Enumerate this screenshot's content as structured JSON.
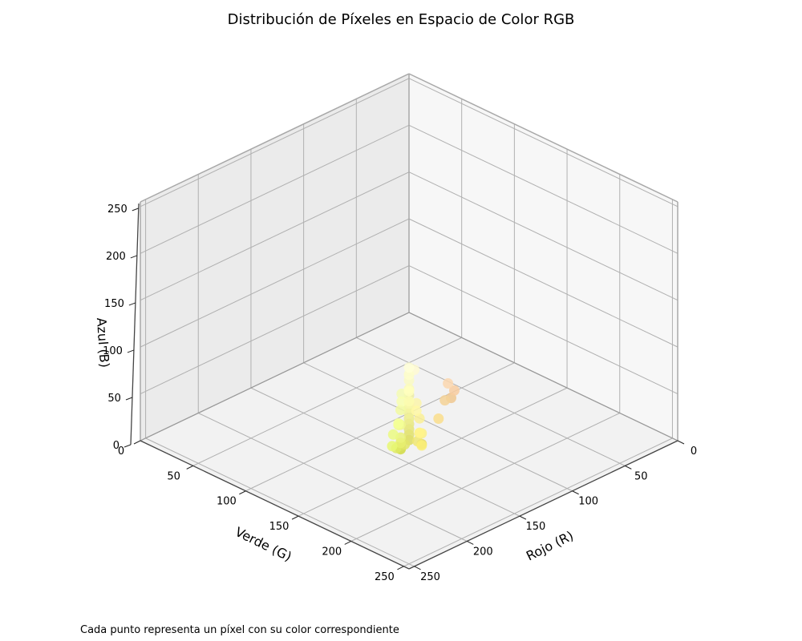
{
  "chart_data": {
    "type": "scatter",
    "projection": "3d",
    "title": "Distribución de Píxeles en Espacio de Color RGB",
    "xlabel": "Rojo (R)",
    "ylabel": "Verde (G)",
    "zlabel": "Azul (B)",
    "xlim": [
      0,
      255
    ],
    "ylim": [
      0,
      255
    ],
    "zlim": [
      0,
      255
    ],
    "xticks": [
      "0",
      "50",
      "100",
      "150",
      "200",
      "250"
    ],
    "yticks": [
      "0",
      "50",
      "100",
      "150",
      "200",
      "250"
    ],
    "zticks": [
      "0",
      "50",
      "100",
      "150",
      "200",
      "250"
    ],
    "grid": true,
    "view": {
      "elevation": 30,
      "azimuth": 45
    },
    "points": [
      {
        "r": 253,
        "g": 253,
        "b": 205,
        "color": "#fdfdcd"
      },
      {
        "r": 250,
        "g": 250,
        "b": 196,
        "color": "#fafac4"
      },
      {
        "r": 251,
        "g": 251,
        "b": 188,
        "color": "#fbfbbc"
      },
      {
        "r": 252,
        "g": 252,
        "b": 176,
        "color": "#fcfcb0"
      },
      {
        "r": 247,
        "g": 247,
        "b": 168,
        "color": "#f7f7a8"
      },
      {
        "r": 244,
        "g": 244,
        "b": 160,
        "color": "#f4f4a0"
      },
      {
        "r": 240,
        "g": 240,
        "b": 150,
        "color": "#f0f096"
      },
      {
        "r": 236,
        "g": 236,
        "b": 140,
        "color": "#ecec8c"
      },
      {
        "r": 232,
        "g": 232,
        "b": 130,
        "color": "#e8e882"
      },
      {
        "r": 228,
        "g": 228,
        "b": 120,
        "color": "#e4e478"
      },
      {
        "r": 224,
        "g": 224,
        "b": 110,
        "color": "#e0e06e"
      },
      {
        "r": 220,
        "g": 220,
        "b": 100,
        "color": "#dcdc64"
      },
      {
        "r": 255,
        "g": 250,
        "b": 210,
        "color": "#fffad2"
      },
      {
        "r": 245,
        "g": 252,
        "b": 180,
        "color": "#f5fcb4"
      },
      {
        "r": 252,
        "g": 245,
        "b": 170,
        "color": "#fcf5aa"
      },
      {
        "r": 242,
        "g": 250,
        "b": 160,
        "color": "#f2faa0"
      },
      {
        "r": 250,
        "g": 240,
        "b": 150,
        "color": "#faf096"
      },
      {
        "r": 238,
        "g": 246,
        "b": 140,
        "color": "#eef68c"
      },
      {
        "r": 246,
        "g": 236,
        "b": 130,
        "color": "#f6ec82"
      },
      {
        "r": 234,
        "g": 242,
        "b": 122,
        "color": "#eaf27a"
      },
      {
        "r": 230,
        "g": 238,
        "b": 112,
        "color": "#e6ee70"
      },
      {
        "r": 240,
        "g": 232,
        "b": 116,
        "color": "#f0e874"
      },
      {
        "r": 226,
        "g": 230,
        "b": 104,
        "color": "#e2e668"
      },
      {
        "r": 218,
        "g": 226,
        "b": 96,
        "color": "#dae260"
      },
      {
        "r": 230,
        "g": 218,
        "b": 100,
        "color": "#e6da64"
      },
      {
        "r": 252,
        "g": 215,
        "b": 175,
        "color": "#fcd7af"
      },
      {
        "r": 248,
        "g": 205,
        "b": 160,
        "color": "#f8cda0"
      },
      {
        "r": 244,
        "g": 210,
        "b": 150,
        "color": "#f4d296"
      },
      {
        "r": 250,
        "g": 222,
        "b": 140,
        "color": "#fade8c"
      },
      {
        "r": 240,
        "g": 200,
        "b": 145,
        "color": "#f0c891"
      },
      {
        "r": 255,
        "g": 255,
        "b": 190,
        "color": "#ffffbe"
      },
      {
        "r": 248,
        "g": 255,
        "b": 175,
        "color": "#f8ffaf"
      },
      {
        "r": 255,
        "g": 248,
        "b": 165,
        "color": "#fff8a5"
      },
      {
        "r": 245,
        "g": 255,
        "b": 150,
        "color": "#f5ff96"
      },
      {
        "r": 255,
        "g": 245,
        "b": 140,
        "color": "#fff58c"
      },
      {
        "r": 235,
        "g": 250,
        "b": 130,
        "color": "#ebfa82"
      },
      {
        "r": 250,
        "g": 238,
        "b": 120,
        "color": "#faee78"
      },
      {
        "r": 232,
        "g": 248,
        "b": 115,
        "color": "#e8f873"
      },
      {
        "r": 222,
        "g": 234,
        "b": 100,
        "color": "#deea64"
      },
      {
        "r": 214,
        "g": 222,
        "b": 88,
        "color": "#d6de58"
      },
      {
        "r": 208,
        "g": 216,
        "b": 82,
        "color": "#d0d852"
      },
      {
        "r": 255,
        "g": 255,
        "b": 215,
        "color": "#ffffd7"
      },
      {
        "r": 248,
        "g": 248,
        "b": 200,
        "color": "#f8f8c8"
      },
      {
        "r": 242,
        "g": 252,
        "b": 145,
        "color": "#f2fc91"
      },
      {
        "r": 252,
        "g": 240,
        "b": 135,
        "color": "#fcf087"
      },
      {
        "r": 236,
        "g": 236,
        "b": 165,
        "color": "#ececa5"
      }
    ],
    "caption": "Cada punto representa un píxel con su color correspondiente"
  }
}
